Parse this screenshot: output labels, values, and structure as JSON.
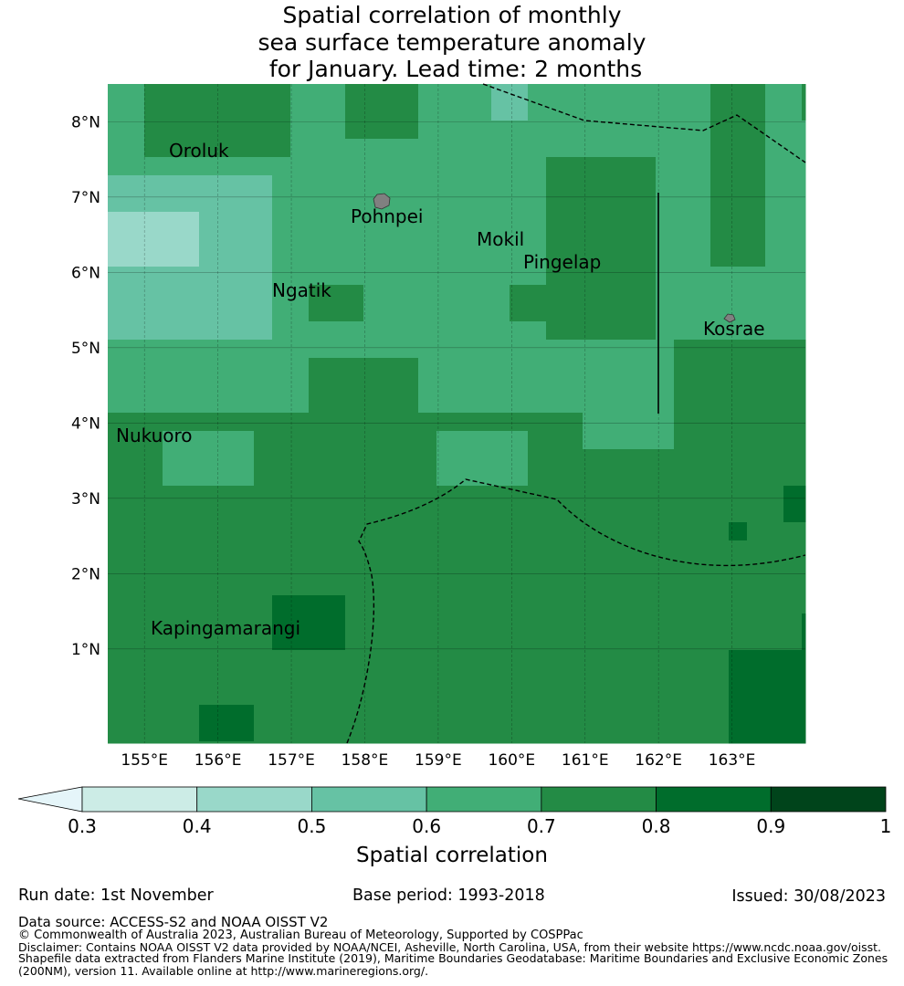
{
  "title": {
    "line1": "Spatial correlation of monthly",
    "line2": "sea surface temperature anomaly",
    "line3": " for January. Lead time: 2 months"
  },
  "map": {
    "lon_range": [
      154.5,
      164.0
    ],
    "lat_range": [
      -0.25,
      8.5
    ],
    "cell_size_deg": 0.25,
    "x_ticks": [
      "155°E",
      "156°E",
      "157°E",
      "158°E",
      "159°E",
      "160°E",
      "161°E",
      "162°E",
      "163°E"
    ],
    "y_ticks": [
      "8°N",
      "7°N",
      "6°N",
      "5°N",
      "4°N",
      "3°N",
      "2°N",
      "1°N"
    ],
    "islands": [
      {
        "name": "Oroluk",
        "lon": 155.5,
        "lat": 7.5
      },
      {
        "name": "Pohnpei",
        "lon": 158.2,
        "lat": 6.9
      },
      {
        "name": "Mokil",
        "lon": 159.8,
        "lat": 6.7
      },
      {
        "name": "Pingelap",
        "lon": 160.7,
        "lat": 6.2
      },
      {
        "name": "Ngatik",
        "lon": 157.4,
        "lat": 5.8
      },
      {
        "name": "Kosrae",
        "lon": 163.0,
        "lat": 5.3
      },
      {
        "name": "Nukuoro",
        "lon": 154.8,
        "lat": 3.85
      },
      {
        "name": "Kapingamarangi",
        "lon": 154.8,
        "lat": 1.1
      }
    ],
    "correlation_bins": [
      {
        "range": "0.3-0.4",
        "color": "#ccece6"
      },
      {
        "range": "0.4-0.5",
        "color": "#99d8c9"
      },
      {
        "range": "0.5-0.6",
        "color": "#66c2a4"
      },
      {
        "range": "0.6-0.7",
        "color": "#41ae76"
      },
      {
        "range": "0.7-0.8",
        "color": "#238b45"
      },
      {
        "range": "0.8-0.9",
        "color": "#006d2c"
      },
      {
        "range": "0.9-1",
        "color": "#00441b"
      }
    ],
    "under_color": "#e5f5f9"
  },
  "colorbar": {
    "ticks": [
      "0.3",
      "0.4",
      "0.5",
      "0.6",
      "0.7",
      "0.8",
      "0.9",
      "1"
    ],
    "label": "Spatial correlation"
  },
  "footer": {
    "run_date": "Run date: 1st November",
    "base_period": "Base period: 1993-2018",
    "issued": "Issued: 30/08/2023",
    "data_source": "Data source: ACCESS-S2 and NOAA OISST V2",
    "copyright": "© Commonwealth of Australia 2023, Australian Bureau of Meteorology, Supported by COSPPac",
    "disclaimer1": "Disclaimer: Contains NOAA OISST V2 data provided by NOAA/NCEI, Asheville, North Carolina, USA, from their website https://www.ncdc.noaa.gov/oisst.",
    "disclaimer2": "Shapefile data extracted from Flanders Marine Institute (2019), Maritime Boundaries Geodatabase: Maritime Boundaries and Exclusive Economic Zones",
    "disclaimer3": "(200NM), version 11. Available online at http://www.marineregions.org/."
  }
}
